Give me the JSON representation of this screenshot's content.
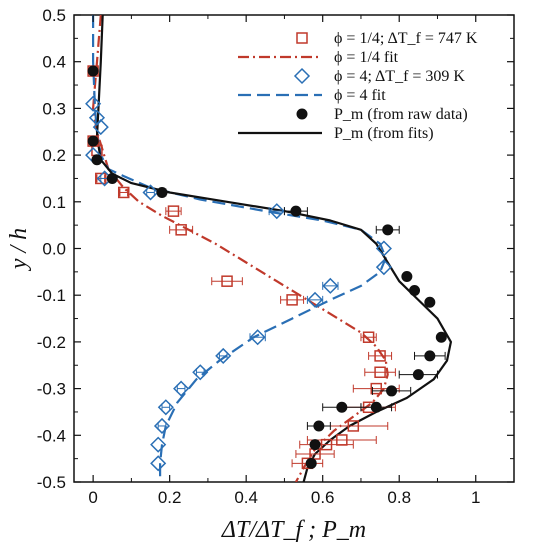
{
  "chart_data": {
    "type": "scatter",
    "title": "",
    "xlabel": "ΔT/ΔT_f ; P_m",
    "ylabel": "y / h",
    "xlim": [
      -0.05,
      1.1
    ],
    "ylim": [
      -0.5,
      0.5
    ],
    "x_ticks": [
      0,
      0.2,
      0.4,
      0.6,
      0.8,
      1
    ],
    "x_tick_labels": [
      "0",
      "0.2",
      "0.4",
      "0.6",
      "0.8",
      "1"
    ],
    "y_ticks": [
      -0.5,
      -0.4,
      -0.3,
      -0.2,
      -0.1,
      0.0,
      0.1,
      0.2,
      0.3,
      0.4,
      0.5
    ],
    "y_tick_labels": [
      "-0.5",
      "-0.4",
      "-0.3",
      "-0.2",
      "-0.1",
      "0.0",
      "0.1",
      "0.2",
      "0.3",
      "0.4",
      "0.5"
    ],
    "grid": false,
    "legend_position": "top-right",
    "legend": [
      {
        "label": "ϕ = 1/4; ΔT_f = 747 K",
        "marker": "square",
        "color": "#c0392b"
      },
      {
        "label": "ϕ = 1/4 fit",
        "line": "dashdot",
        "color": "#c0392b"
      },
      {
        "label": "ϕ = 4;   ΔT_f = 309 K",
        "marker": "diamond",
        "color": "#2a6fb5"
      },
      {
        "label": "ϕ = 4 fit",
        "line": "dashed",
        "color": "#2a6fb5"
      },
      {
        "label": "P_m (from raw data)",
        "marker": "filled-circle",
        "color": "#111111"
      },
      {
        "label": "P_m (from fits)",
        "line": "solid",
        "color": "#111111"
      }
    ],
    "series": [
      {
        "name": "ϕ = 1/4; ΔT_f = 747 K",
        "kind": "points",
        "marker": "square",
        "color": "#c0392b",
        "x": [
          0.0,
          0.0,
          0.01,
          0.02,
          0.08,
          0.21,
          0.23,
          0.35,
          0.52,
          0.72,
          0.75,
          0.75,
          0.74,
          0.72,
          0.68,
          0.65,
          0.61,
          0.58,
          0.56
        ],
        "y": [
          0.38,
          0.23,
          0.21,
          0.15,
          0.12,
          0.08,
          0.04,
          -0.07,
          -0.11,
          -0.19,
          -0.23,
          -0.265,
          -0.3,
          -0.34,
          -0.38,
          -0.41,
          -0.42,
          -0.44,
          -0.46
        ],
        "xerr": [
          0.0,
          0.0,
          0.0,
          0.01,
          0.01,
          0.02,
          0.03,
          0.04,
          0.03,
          0.02,
          0.03,
          0.04,
          0.06,
          0.07,
          0.09,
          0.09,
          0.07,
          0.05,
          0.04
        ]
      },
      {
        "name": "ϕ = 1/4 fit",
        "kind": "line",
        "dash": "dashdot",
        "color": "#c0392b",
        "x": [
          0.02,
          0.015,
          0.01,
          0.005,
          0.0,
          0.01,
          0.04,
          0.08,
          0.12,
          0.18,
          0.25,
          0.32,
          0.4,
          0.48,
          0.56,
          0.64,
          0.7,
          0.74,
          0.765,
          0.77,
          0.76,
          0.73,
          0.68,
          0.63,
          0.58,
          0.55,
          0.53
        ],
        "y": [
          0.5,
          0.45,
          0.4,
          0.35,
          0.3,
          0.25,
          0.17,
          0.13,
          0.1,
          0.07,
          0.04,
          0.01,
          -0.03,
          -0.07,
          -0.11,
          -0.15,
          -0.18,
          -0.21,
          -0.24,
          -0.27,
          -0.3,
          -0.33,
          -0.36,
          -0.39,
          -0.43,
          -0.47,
          -0.5
        ]
      },
      {
        "name": "ϕ = 4;   ΔT_f = 309 K",
        "kind": "points",
        "marker": "diamond",
        "color": "#2a6fb5",
        "x": [
          0.0,
          0.01,
          0.02,
          0.0,
          0.03,
          0.15,
          0.48,
          0.76,
          0.76,
          0.62,
          0.58,
          0.43,
          0.34,
          0.28,
          0.23,
          0.19,
          0.18,
          0.17,
          0.17
        ],
        "y": [
          0.31,
          0.28,
          0.26,
          0.2,
          0.15,
          0.12,
          0.08,
          0.0,
          -0.04,
          -0.08,
          -0.11,
          -0.19,
          -0.23,
          -0.265,
          -0.3,
          -0.34,
          -0.38,
          -0.42,
          -0.46
        ],
        "xerr": [
          0.0,
          0.0,
          0.0,
          0.0,
          0.01,
          0.01,
          0.02,
          0.0,
          0.0,
          0.02,
          0.02,
          0.02,
          0.01,
          0.01,
          0.01,
          0.01,
          0.01,
          0.0,
          0.0
        ]
      },
      {
        "name": "ϕ = 4 fit",
        "kind": "line",
        "dash": "dashed",
        "color": "#2a6fb5",
        "x": [
          0.0,
          0.0,
          0.005,
          0.01,
          0.02,
          0.04,
          0.08,
          0.15,
          0.28,
          0.45,
          0.6,
          0.7,
          0.75,
          0.765,
          0.75,
          0.7,
          0.62,
          0.52,
          0.42,
          0.33,
          0.27,
          0.22,
          0.19,
          0.18,
          0.175,
          0.175
        ],
        "y": [
          0.5,
          0.4,
          0.3,
          0.25,
          0.2,
          0.17,
          0.155,
          0.13,
          0.105,
          0.08,
          0.06,
          0.04,
          0.01,
          -0.02,
          -0.05,
          -0.08,
          -0.11,
          -0.15,
          -0.19,
          -0.24,
          -0.28,
          -0.33,
          -0.38,
          -0.42,
          -0.46,
          -0.5
        ]
      },
      {
        "name": "P_m (from raw data)",
        "kind": "points",
        "marker": "filled-circle",
        "color": "#111111",
        "x": [
          0.0,
          0.0,
          0.01,
          0.05,
          0.18,
          0.53,
          0.77,
          0.82,
          0.84,
          0.88,
          0.91,
          0.88,
          0.85,
          0.78,
          0.74,
          0.65,
          0.59,
          0.58,
          0.57
        ],
        "y": [
          0.38,
          0.23,
          0.19,
          0.15,
          0.12,
          0.08,
          0.04,
          -0.06,
          -0.09,
          -0.115,
          -0.19,
          -0.23,
          -0.27,
          -0.305,
          -0.34,
          -0.34,
          -0.38,
          -0.42,
          -0.46
        ],
        "xerr": [
          0.0,
          0.0,
          0.0,
          0.0,
          0.01,
          0.03,
          0.03,
          0.0,
          0.0,
          0.0,
          0.0,
          0.04,
          0.05,
          0.05,
          0.04,
          0.05,
          0.03,
          0.0,
          0.0
        ]
      },
      {
        "name": "P_m (from fits)",
        "kind": "line",
        "dash": "solid",
        "color": "#111111",
        "x": [
          0.025,
          0.02,
          0.015,
          0.01,
          0.02,
          0.05,
          0.1,
          0.2,
          0.35,
          0.5,
          0.62,
          0.7,
          0.74,
          0.77,
          0.8,
          0.85,
          0.9,
          0.935,
          0.925,
          0.89,
          0.82,
          0.74,
          0.67,
          0.62,
          0.58,
          0.56,
          0.55
        ],
        "y": [
          0.5,
          0.4,
          0.32,
          0.24,
          0.19,
          0.16,
          0.14,
          0.12,
          0.1,
          0.08,
          0.06,
          0.04,
          0.01,
          -0.03,
          -0.07,
          -0.11,
          -0.15,
          -0.2,
          -0.24,
          -0.28,
          -0.32,
          -0.35,
          -0.38,
          -0.41,
          -0.44,
          -0.47,
          -0.5
        ]
      }
    ]
  }
}
